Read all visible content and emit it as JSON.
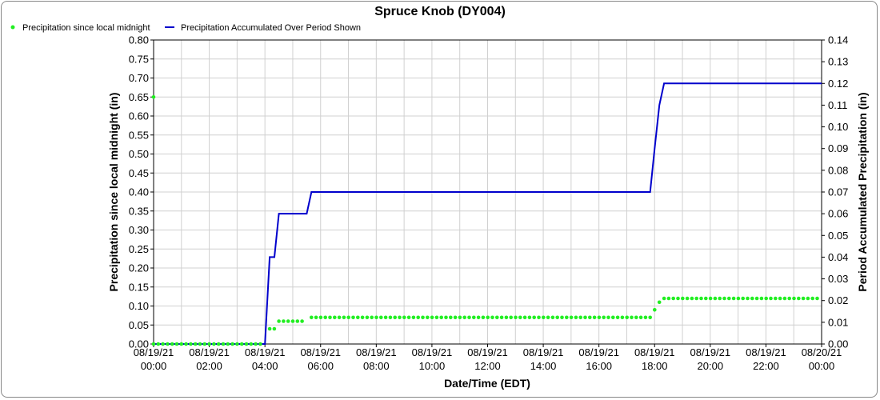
{
  "chart_data": {
    "type": "line",
    "title": "Spruce Knob (DY004)",
    "xlabel": "Date/Time (EDT)",
    "ylabel_left": "Precipitation since local midnight (in)",
    "ylabel_right": "Period Accumulated Precipitation (in)",
    "x_tick_labels": [
      [
        "08/19/21",
        "00:00"
      ],
      [
        "08/19/21",
        "02:00"
      ],
      [
        "08/19/21",
        "04:00"
      ],
      [
        "08/19/21",
        "06:00"
      ],
      [
        "08/19/21",
        "08:00"
      ],
      [
        "08/19/21",
        "10:00"
      ],
      [
        "08/19/21",
        "12:00"
      ],
      [
        "08/19/21",
        "14:00"
      ],
      [
        "08/19/21",
        "16:00"
      ],
      [
        "08/19/21",
        "18:00"
      ],
      [
        "08/19/21",
        "20:00"
      ],
      [
        "08/19/21",
        "22:00"
      ],
      [
        "08/20/21",
        "00:00"
      ]
    ],
    "xlim_hours": [
      0,
      24
    ],
    "ylim_left": [
      0,
      0.8
    ],
    "ylim_right": [
      0,
      0.14
    ],
    "y_left_ticks": [
      "0.00",
      "0.05",
      "0.10",
      "0.15",
      "0.20",
      "0.25",
      "0.30",
      "0.35",
      "0.40",
      "0.45",
      "0.50",
      "0.55",
      "0.60",
      "0.65",
      "0.70",
      "0.75",
      "0.80"
    ],
    "y_right_ticks": [
      "0.00",
      "0.01",
      "0.02",
      "0.03",
      "0.04",
      "0.05",
      "0.06",
      "0.07",
      "0.08",
      "0.09",
      "0.10",
      "0.11",
      "0.12",
      "0.13",
      "0.14"
    ],
    "grid": true,
    "legend_position": "top-left",
    "series": [
      {
        "name": "Precipitation since local midnight",
        "axis": "left",
        "style": "points",
        "color": "#22ee22",
        "segments": [
          {
            "from": 0,
            "to": 4,
            "value": 0.0
          },
          {
            "from": 4.17,
            "to": 4.34,
            "value": 0.04
          },
          {
            "from": 4.5,
            "to": 5.5,
            "value": 0.06
          },
          {
            "from": 5.67,
            "to": 17.84,
            "value": 0.07
          },
          {
            "from": 18,
            "to": 18,
            "value": 0.09
          },
          {
            "from": 18.17,
            "to": 18.17,
            "value": 0.11
          },
          {
            "from": 18.34,
            "to": 24,
            "value": 0.12
          }
        ],
        "extra_points": [
          {
            "x": 0,
            "y": 0.65
          }
        ],
        "step_hours": 0.1667
      },
      {
        "name": "Precipitation Accumulated Over Period Shown",
        "axis": "right",
        "style": "line",
        "color": "#0000cc",
        "x": [
          0,
          4.0,
          4.17,
          4.34,
          4.5,
          5.5,
          5.67,
          17.84,
          18.0,
          18.17,
          18.34,
          24
        ],
        "y": [
          0,
          0,
          0.04,
          0.04,
          0.06,
          0.06,
          0.07,
          0.07,
          0.09,
          0.11,
          0.12,
          0.12
        ]
      }
    ]
  }
}
